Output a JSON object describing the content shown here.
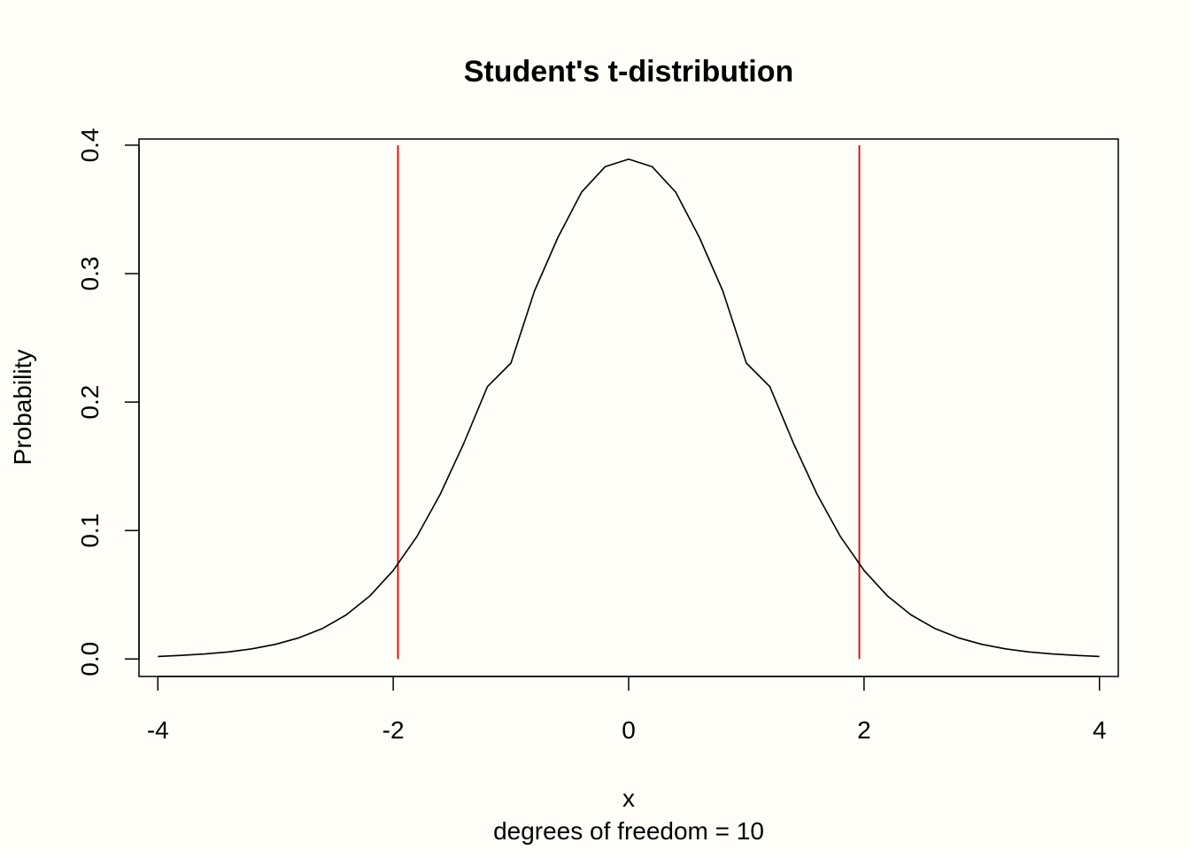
{
  "chart_data": {
    "type": "line",
    "title": "Student's t-distribution",
    "xlabel": "x",
    "subtitle": "degrees of freedom = 10",
    "ylabel": "Probability",
    "xlim": [
      -4.16,
      4.16
    ],
    "ylim": [
      -0.0136,
      0.4048
    ],
    "x_ticks": [
      "-4",
      "-2",
      "0",
      "2",
      "4"
    ],
    "y_ticks": [
      "0.0",
      "0.1",
      "0.2",
      "0.3",
      "0.4"
    ],
    "grid": false,
    "series": [
      {
        "color": "#000000",
        "x": [
          -4,
          -3.8,
          -3.6,
          -3.4,
          -3.2,
          -3,
          -2.8,
          -2.6,
          -2.4,
          -2.2,
          -2,
          -1.8,
          -1.6,
          -1.4,
          -1.2,
          -1,
          -0.8,
          -0.6,
          -0.4,
          -0.2,
          0,
          0.2,
          0.4,
          0.6,
          0.8,
          1,
          1.2,
          1.4,
          1.6,
          1.8,
          2,
          2.2,
          2.4,
          2.6,
          2.8,
          3,
          3.2,
          3.4,
          3.6,
          3.8,
          4
        ],
        "y": [
          0.002,
          0.0028,
          0.0039,
          0.0055,
          0.0079,
          0.0114,
          0.0165,
          0.0238,
          0.0343,
          0.0489,
          0.0689,
          0.0952,
          0.1284,
          0.168,
          0.212,
          0.2304,
          0.2866,
          0.3283,
          0.3634,
          0.3832,
          0.3891,
          0.3832,
          0.3634,
          0.3283,
          0.2866,
          0.2304,
          0.212,
          0.168,
          0.1284,
          0.0952,
          0.0689,
          0.0489,
          0.0343,
          0.0238,
          0.0165,
          0.0114,
          0.0079,
          0.0055,
          0.0039,
          0.0028,
          0.002
        ]
      }
    ],
    "vlines": [
      {
        "x": -1.96,
        "y0": 0,
        "y1": 0.4,
        "color": "#dd0000"
      },
      {
        "x": 1.96,
        "y0": 0,
        "y1": 0.4,
        "color": "#dd0000"
      }
    ]
  }
}
